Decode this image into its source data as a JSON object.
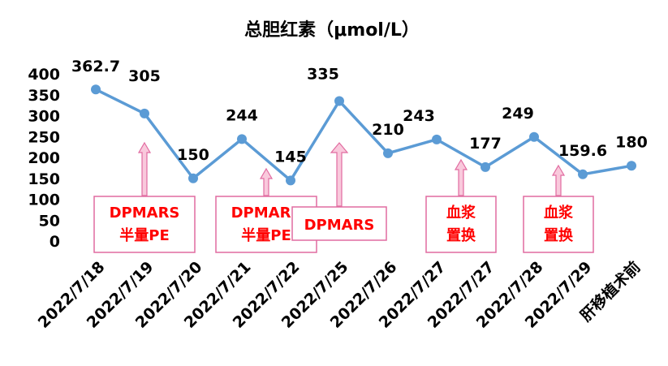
{
  "chart_data": {
    "type": "line",
    "title": "总胆红素（μmol/L）",
    "xlabel": "",
    "ylabel": "",
    "categories": [
      "2022/7/18",
      "2022/7/19",
      "2022/7/20",
      "2022/7/21",
      "2022/7/22",
      "2022/7/25",
      "2022/7/26",
      "2022/7/27",
      "2022/7/27",
      "2022/7/28",
      "2022/7/29",
      "肝移植术前"
    ],
    "values": [
      362.7,
      305,
      150,
      244,
      145,
      335,
      210,
      243,
      177,
      249,
      159.6,
      180
    ],
    "data_labels": [
      "362.7",
      "305",
      "150",
      "244",
      "145",
      "335",
      "210",
      "243",
      "177",
      "249",
      "159.6",
      "180"
    ],
    "ylim": [
      0,
      400
    ],
    "yticks": [
      "0",
      "50",
      "100",
      "150",
      "200",
      "250",
      "300",
      "350",
      "400"
    ],
    "grid": false,
    "legend": "none",
    "line_color": "#5b9bd5",
    "annotations": [
      {
        "lines": [
          "DPMARS",
          "半量PE"
        ],
        "between": [
          0,
          2
        ]
      },
      {
        "lines": [
          "DPMARS",
          "半量PE"
        ],
        "between": [
          3,
          4
        ]
      },
      {
        "lines": [
          "DPMARS"
        ],
        "between": [
          5,
          5
        ]
      },
      {
        "lines": [
          "血浆",
          "置换"
        ],
        "between": [
          7,
          8
        ]
      },
      {
        "lines": [
          "血浆",
          "置换"
        ],
        "between": [
          9,
          10
        ]
      }
    ],
    "annotation_text_color": "#ff0000",
    "annotation_border_color": "#e16ba0",
    "arrow_fill": "#f9c9dc",
    "arrow_stroke": "#e16ba0"
  }
}
